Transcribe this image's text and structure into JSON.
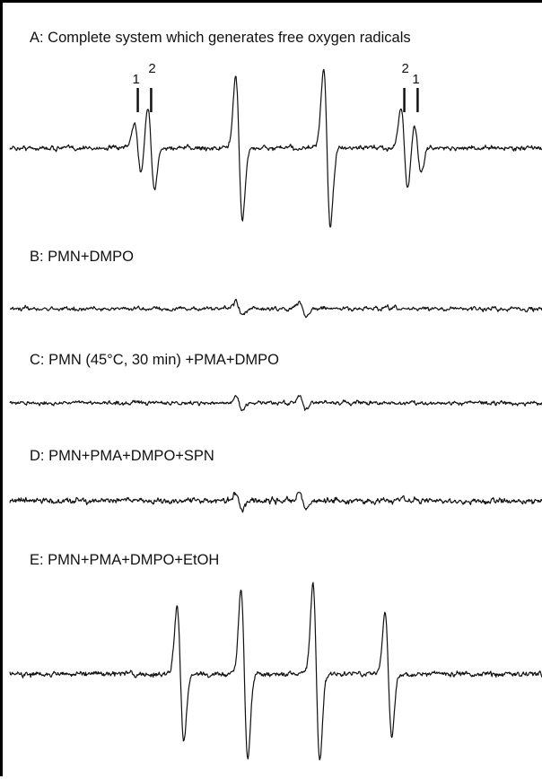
{
  "chart_data": {
    "type": "line",
    "panels": [
      {
        "id": "A",
        "label": "A: Complete system which generates free oxygen radicals",
        "noise": 0.055,
        "peaks": [
          {
            "x": 0.24,
            "amp": 0.3
          },
          {
            "x": 0.265,
            "amp": 0.5
          },
          {
            "x": 0.43,
            "amp": 0.85
          },
          {
            "x": 0.595,
            "amp": 0.95
          },
          {
            "x": 0.74,
            "amp": 0.5
          },
          {
            "x": 0.765,
            "amp": 0.3
          }
        ],
        "markers": [
          {
            "x": 0.24,
            "text": "1"
          },
          {
            "x": 0.265,
            "text": "2"
          },
          {
            "x": 0.74,
            "text": "2"
          },
          {
            "x": 0.765,
            "text": "1"
          }
        ]
      },
      {
        "id": "B",
        "label": "B: PMN+DMPO",
        "noise": 0.11,
        "peaks": [
          {
            "x": 0.43,
            "amp": 0.2
          },
          {
            "x": 0.55,
            "amp": 0.22
          }
        ]
      },
      {
        "id": "C",
        "label": "C: PMN (45°C, 30 min) +PMA+DMPO",
        "noise": 0.11,
        "peaks": [
          {
            "x": 0.43,
            "amp": 0.2
          },
          {
            "x": 0.55,
            "amp": 0.22
          }
        ]
      },
      {
        "id": "D",
        "label": "D: PMN+PMA+DMPO+SPN",
        "noise": 0.16,
        "peaks": [
          {
            "x": 0.43,
            "amp": 0.25
          },
          {
            "x": 0.55,
            "amp": 0.25
          }
        ]
      },
      {
        "id": "E",
        "label": "E: PMN+PMA+DMPO+EtOH",
        "noise": 0.06,
        "peaks": [
          {
            "x": 0.32,
            "amp": 0.75
          },
          {
            "x": 0.44,
            "amp": 0.95
          },
          {
            "x": 0.575,
            "amp": 1.0
          },
          {
            "x": 0.71,
            "amp": 0.7
          }
        ]
      }
    ]
  }
}
